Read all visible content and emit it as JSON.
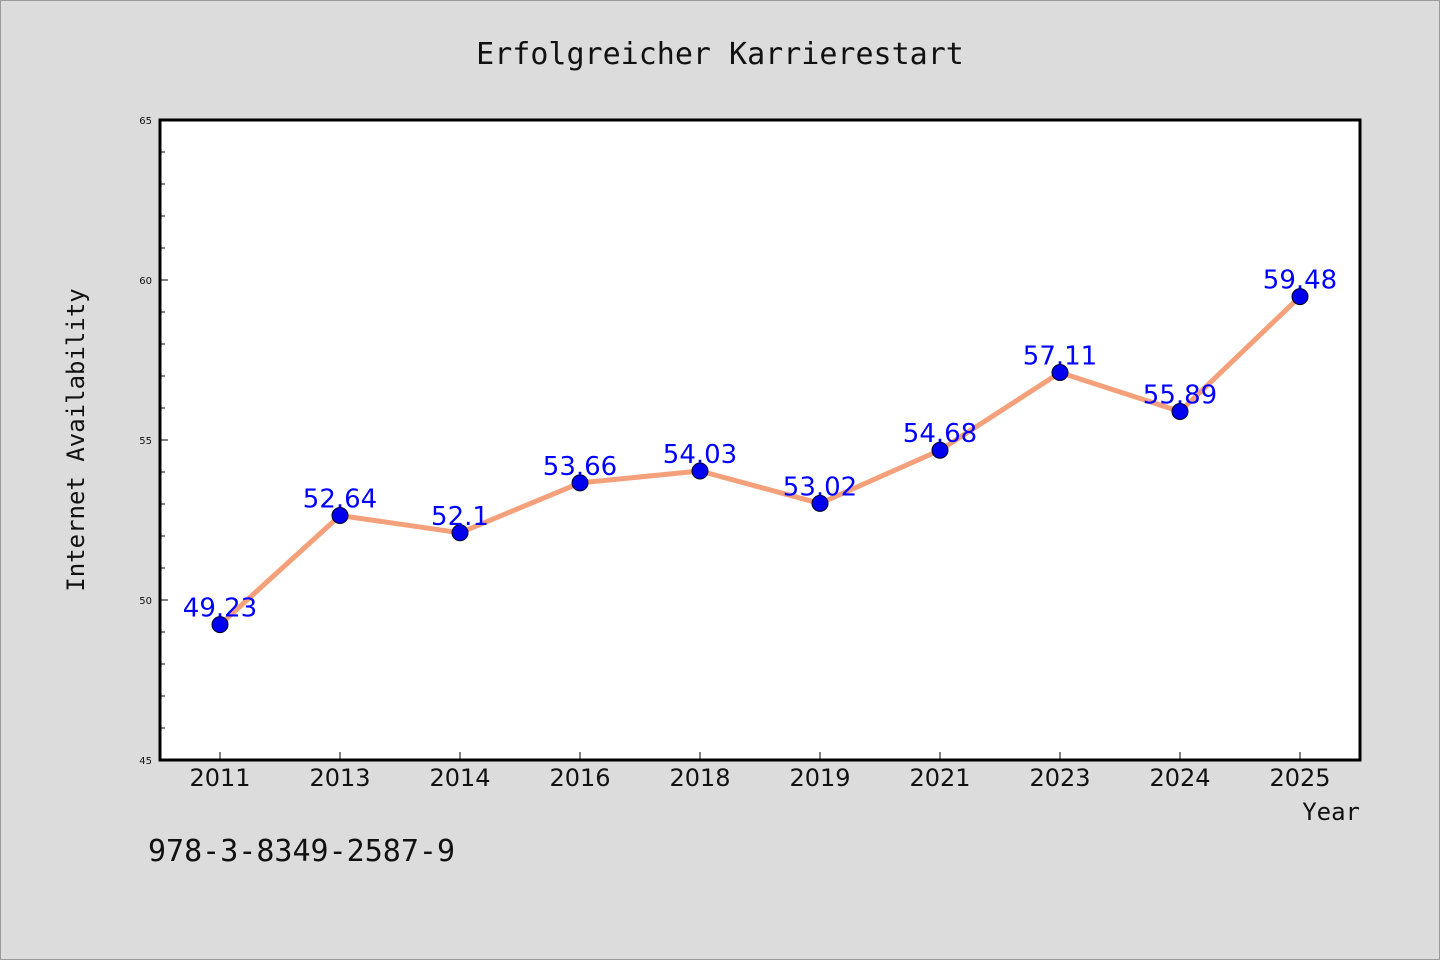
{
  "chart_data": {
    "type": "line",
    "title": "Erfolgreicher Karrierestart",
    "xlabel": "Year",
    "ylabel": "Internet Availability",
    "categories": [
      "2011",
      "2013",
      "2014",
      "2016",
      "2018",
      "2019",
      "2021",
      "2023",
      "2024",
      "2025"
    ],
    "values": [
      49.23,
      52.64,
      52.1,
      53.66,
      54.03,
      53.02,
      54.68,
      57.11,
      55.89,
      59.48
    ],
    "data_labels": [
      "49.23",
      "52.64",
      "52.1",
      "53.66",
      "54.03",
      "53.02",
      "54.68",
      "57.11",
      "55.89",
      "59.48"
    ],
    "ylim": [
      45,
      65
    ],
    "yticks": [
      "45",
      "50",
      "55",
      "60",
      "65"
    ],
    "grid": false,
    "line_color": "#f4a07a",
    "marker_color": "#0000ee",
    "label_color": "#0000ff"
  },
  "footer": {
    "isbn": "978-3-8349-2587-9"
  }
}
